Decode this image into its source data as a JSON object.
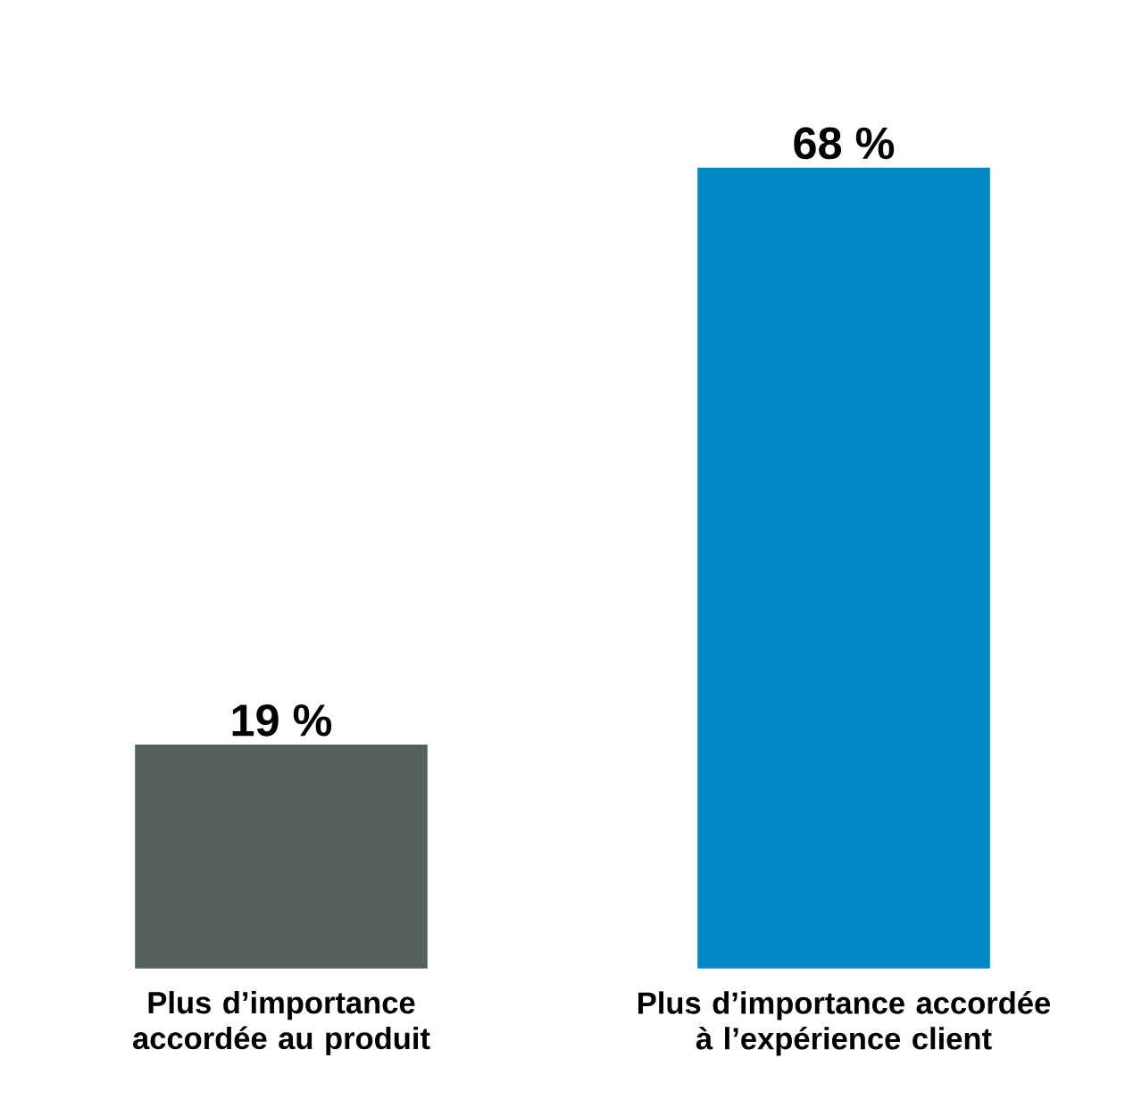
{
  "chart_data": {
    "type": "bar",
    "categories": [
      "Plus d’importance accordée au produit",
      "Plus d’importance accordée à l’expérience client"
    ],
    "values": [
      19,
      68
    ],
    "colors": [
      "#55615d",
      "#0089c4"
    ],
    "value_labels": [
      "19 %",
      "68 %"
    ]
  }
}
